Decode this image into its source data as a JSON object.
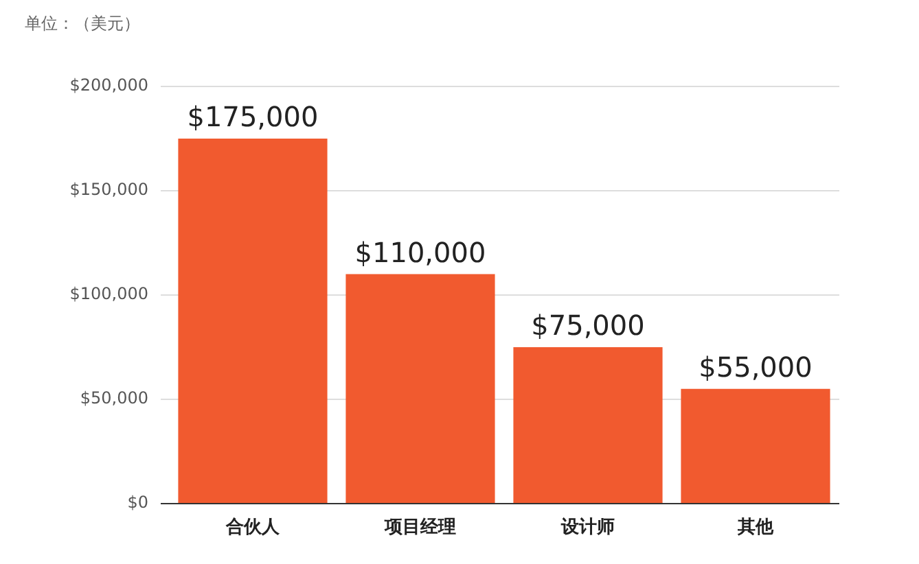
{
  "chart_data": {
    "type": "bar",
    "annotations": [
      "单位：（美元）"
    ],
    "categories": [
      "合伙人",
      "项目经理",
      "设计师",
      "其他"
    ],
    "values": [
      175000,
      110000,
      75000,
      55000
    ],
    "color": "#f15a2f",
    "value_labels": [
      "$175,000",
      "$110,000",
      "$75,000",
      "$55,000"
    ],
    "ylim": [
      0,
      200000
    ],
    "yticks": [
      {
        "value": 0,
        "label": "$0"
      },
      {
        "value": 50000,
        "label": "$50,000"
      },
      {
        "value": 100000,
        "label": "$100,000"
      },
      {
        "value": 150000,
        "label": "$150,000"
      },
      {
        "value": 200000,
        "label": "$200,000"
      }
    ],
    "grid": "y"
  }
}
